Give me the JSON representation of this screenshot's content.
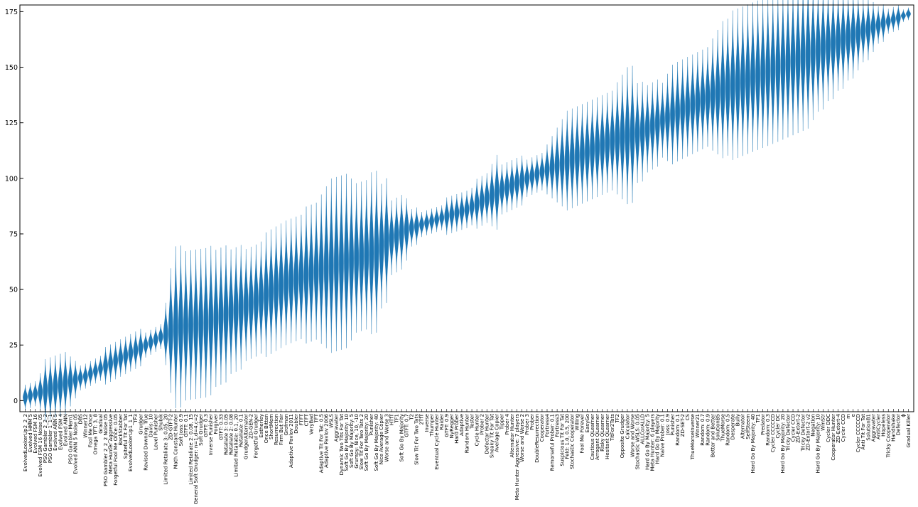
{
  "chart_data": {
    "type": "violin",
    "title": "",
    "xlabel": "",
    "ylabel": "",
    "ylim": [
      -5,
      178
    ],
    "yticks": [
      0,
      25,
      50,
      75,
      100,
      125,
      150,
      175
    ],
    "grid": false,
    "legend": "none",
    "colors": {
      "violin": "#1f77b4"
    },
    "categories": [
      "EvolvedLookerUp2_2_2",
      "Evolved HMM 5",
      "Evolved FSM 16",
      "Evolved FSM 16 Noise 05",
      "PSO Gambler 2_2_2",
      "PSO Gambler 1_1_1",
      "Evolved ANN 5",
      "Evolved FSM 4",
      "Evolved ANN",
      "PSO Gambler Mem1",
      "Evolved ANN 5 Noise 05",
      "DBS",
      "Winner12",
      "Fool Me Once",
      "Omega TFT: 3, 8",
      "Gradual",
      "PSO Gambler 2_2_2 Noise 05",
      "Meta Hunter Aggressive",
      "Forgetful Fool Me Once: 0.05",
      "BackStabber",
      "Spiteful Tit For Tat",
      "EvolvedLookerUp1_1_1",
      "TF3",
      "Grudger",
      "Revised Downing: True",
      "Davis: 10",
      "Level Punisher",
      "Shubik",
      "Limited Retaliate 3: 0.05, 20",
      "ZD-GTFT-2",
      "Math Constant Hunter",
      "Soft Joss: 0.9",
      "GTFT: 0.1",
      "Limited Retaliate 2: 0.08, 15",
      "General Soft Grudger: n=1,d=4,c=2",
      "Soft Grudger",
      "GTFT: 0.3",
      "Inverse Punisher",
      "Forgiver",
      "GTFT: 0.33",
      "Retaliate 3: 0.05",
      "Retaliate 2: 0.08",
      "Limited Retaliate: 0.1, 20",
      "Retaliate: 0.1",
      "GrudgerAlternator",
      "ZD-GEN-2",
      "Forgetful Grudger",
      "Eatherley",
      "Once Bitten",
      "ShortMem",
      "Resurrection",
      "Firm But Fair",
      "Grofman",
      "Adaptive Pavlov 2011",
      "Doubler",
      "FTFT",
      "CTFT",
      "VeryBad",
      "TFT",
      "Adaptive Tit For Tat: 0.5",
      "Adaptive Pavlov 2006",
      "WSLS",
      "Aggravater",
      "Dynamic Two Tits For Tat",
      "Soft Go By Majority: 10",
      "Soft Go By Majority: 5",
      "Grumpy: Nice, 10, -10",
      "Slow Tit For Two Tats 2",
      "Soft Go By Majority: 20",
      "Punisher",
      "Soft Go By Majority: 40",
      "Nice Average Copier",
      "Worse and Worse 3",
      "HTfT",
      "TF1",
      "Soft Go By Majority",
      "GTFT: 0.7",
      "T2",
      "Slow Tit For Two Tats",
      "2TfT",
      "Inverse",
      "Thumper",
      "Eventual Cycle Hunter",
      "Raider",
      "GTFT: 0.9",
      "NyRegger",
      "Hard Prober",
      "Adaptive",
      "Random Hunter",
      "Tester",
      "Cycle Hunter",
      "Prober 2",
      "Defector Hunter",
      "Sneaky Tit For Tat",
      "Average Copier",
      "Tipper",
      "Prober 4",
      "Alternator Hunter",
      "Meta Hunter Aggressive: 7 players",
      "Worse and Worse 2",
      "Prober 3",
      "Prober",
      "DoubleResurrection",
      "Cooperator",
      "Fortress4",
      "Remorseful Prober: 0.1",
      "Fortress3",
      "Suspicious Tit For Tat",
      "Feld: 1.0, 0.5, 200",
      "Stochastic Cooperator",
      "Willing",
      "Fool Me Forever",
      "EasyGo",
      "Cautious QLearner",
      "Arrogant QLearner",
      "Risky QLearner",
      "Hesitant QLearner",
      "TitFor2Tats",
      "TF2",
      "Opposite Grudger",
      "Calculator",
      "Worse and Worse",
      "Stochastic WSLS: 0.05",
      "ALLCorALLD",
      "Hard Go By Majority: 5",
      "Meta Hunter: 6 players",
      "Hard Go By Majority",
      "Naive Prober: 0.1",
      "Joss: 0.9",
      "Punisher",
      "Random: 0.1",
      "ZD-SET-2",
      "CS",
      "ThueMorseInverse",
      "Winner21",
      "Random: 0.7",
      "Random: 0.9",
      "Better and Better",
      "SolutionB5",
      "ThueMorse",
      "Random: 0.5",
      "Desperate",
      "Bully",
      "Alternator",
      "SelfSteem",
      "Hard Go By Majority: 40",
      "TF1",
      "Predator",
      "Random: 0.3",
      "Cycler CCCCCD",
      "Cycler DC",
      "Hard Go By Majority: 20",
      "Tricky Defector",
      "Cycler CCD",
      "ZD-Extort-2",
      "Tricky Defector",
      "ZD-Extort-2 v2",
      "Negation",
      "Hard Go By Majority: 10",
      "WmStr",
      "Cycler DDC",
      "Cooperator Hunter",
      "ZD-Extort-4",
      "Cycler CCD",
      "m",
      "e",
      "Cycler CCCCCD",
      "Anti Tit For Tat",
      "SolutionB1",
      "Aggravater",
      "AntiCycler",
      "Hopeless",
      "Tricky Cooperator",
      "Handshake",
      "Defector",
      "ϕ",
      "Gradual Killer"
    ],
    "spread": [
      2,
      2,
      2,
      3,
      5,
      5,
      5,
      5,
      5,
      4,
      3,
      2,
      2,
      2,
      2,
      2,
      3,
      3,
      3,
      3,
      3,
      3,
      3,
      3,
      2,
      2,
      2,
      2,
      5,
      10,
      13,
      13,
      12,
      12,
      12,
      12,
      12,
      12,
      11,
      11,
      11,
      10,
      10,
      10,
      9,
      9,
      9,
      9,
      10,
      10,
      10,
      10,
      10,
      10,
      10,
      10,
      11,
      11,
      11,
      12,
      13,
      14,
      14,
      14,
      14,
      13,
      12,
      12,
      12,
      13,
      13,
      10,
      10,
      6,
      6,
      6,
      5,
      3,
      3,
      2,
      2,
      2,
      2,
      2,
      3,
      3,
      3,
      3,
      3,
      3,
      4,
      4,
      4,
      5,
      6,
      4,
      4,
      4,
      4,
      4,
      3,
      3,
      3,
      3,
      4,
      5,
      6,
      7,
      8,
      8,
      8,
      8,
      8,
      8,
      8,
      8,
      8,
      8,
      9,
      10,
      11,
      11,
      8,
      8,
      7,
      7,
      7,
      6,
      7,
      8,
      8,
      8,
      8,
      8,
      8,
      8,
      8,
      9,
      10,
      11,
      11,
      12,
      12,
      12,
      12,
      12,
      12,
      12,
      12,
      12,
      12,
      12,
      12,
      12,
      12,
      12,
      12,
      11,
      10,
      10,
      9,
      9,
      8,
      8,
      7,
      7,
      6,
      5,
      5,
      4,
      3,
      3,
      2,
      2,
      2,
      1,
      1,
      1,
      1,
      1,
      1,
      1
    ],
    "trend_anchors": [
      [
        0,
        1.5
      ],
      [
        12,
        11
      ],
      [
        24,
        25
      ],
      [
        28,
        30
      ],
      [
        30,
        33
      ],
      [
        36,
        35
      ],
      [
        46,
        45
      ],
      [
        52,
        53
      ],
      [
        60,
        60
      ],
      [
        70,
        67
      ],
      [
        72,
        72
      ],
      [
        76,
        77
      ],
      [
        80,
        80
      ],
      [
        88,
        86
      ],
      [
        95,
        95
      ],
      [
        103,
        103
      ],
      [
        110,
        110
      ],
      [
        118,
        118
      ],
      [
        123,
        121
      ],
      [
        130,
        130
      ],
      [
        140,
        141
      ],
      [
        150,
        150
      ],
      [
        160,
        160
      ],
      [
        170,
        169
      ],
      [
        176,
        174
      ],
      [
        182,
        176
      ]
    ]
  }
}
